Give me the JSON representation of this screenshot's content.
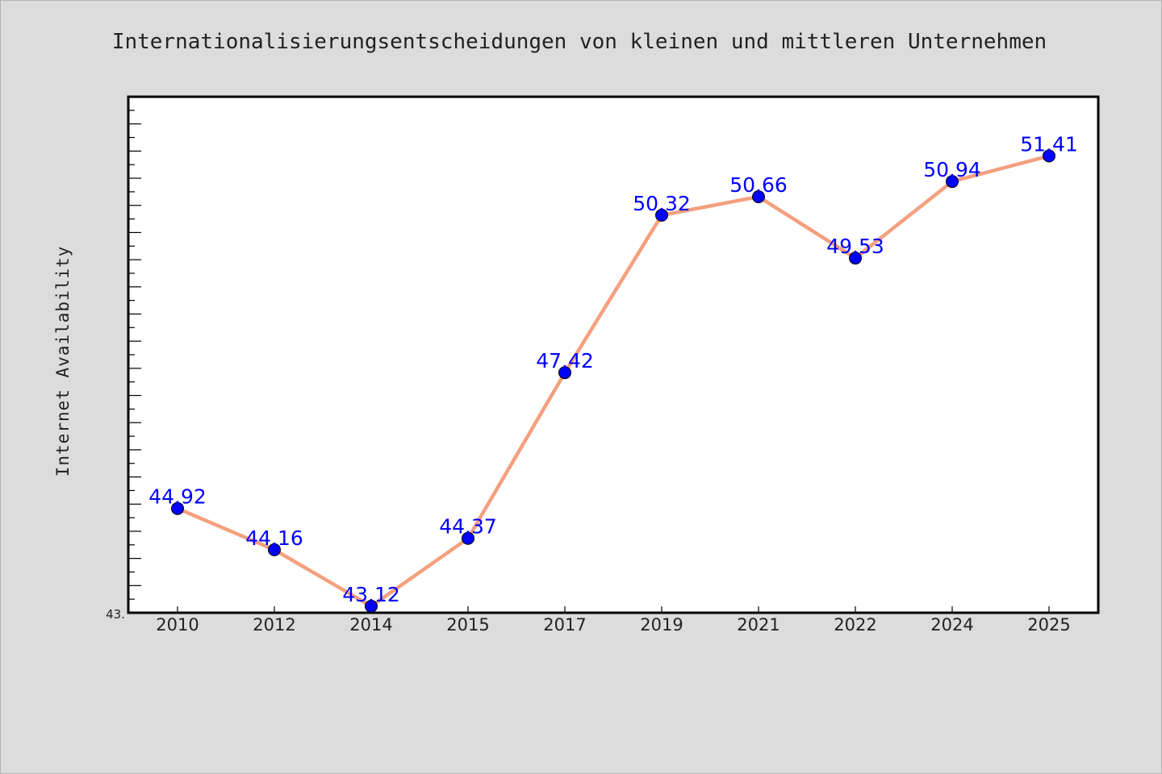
{
  "chart_data": {
    "type": "line",
    "title": "Internationalisierungsentscheidungen von kleinen und mittleren Unternehmen",
    "xlabel": "",
    "ylabel": "Internet Availability",
    "categories": [
      "2010",
      "2012",
      "2014",
      "2015",
      "2017",
      "2019",
      "2021",
      "2022",
      "2024",
      "2025"
    ],
    "values": [
      44.92,
      44.16,
      43.12,
      44.37,
      47.42,
      50.32,
      50.66,
      49.53,
      50.94,
      51.41
    ],
    "data_labels": [
      "44.92",
      "44.16",
      "43.12",
      "44.37",
      "47.42",
      "50.32",
      "50.66",
      "49.53",
      "50.94",
      "51.41"
    ],
    "ylim": [
      43.0,
      52.5
    ],
    "ytick_label": "43.",
    "grid": false,
    "legend": "none",
    "colors": {
      "line": "#f4a07e",
      "marker": "#0000ff",
      "label": "#0000ff",
      "background": "#dcdcdc",
      "plot_background": "#ffffff"
    }
  }
}
